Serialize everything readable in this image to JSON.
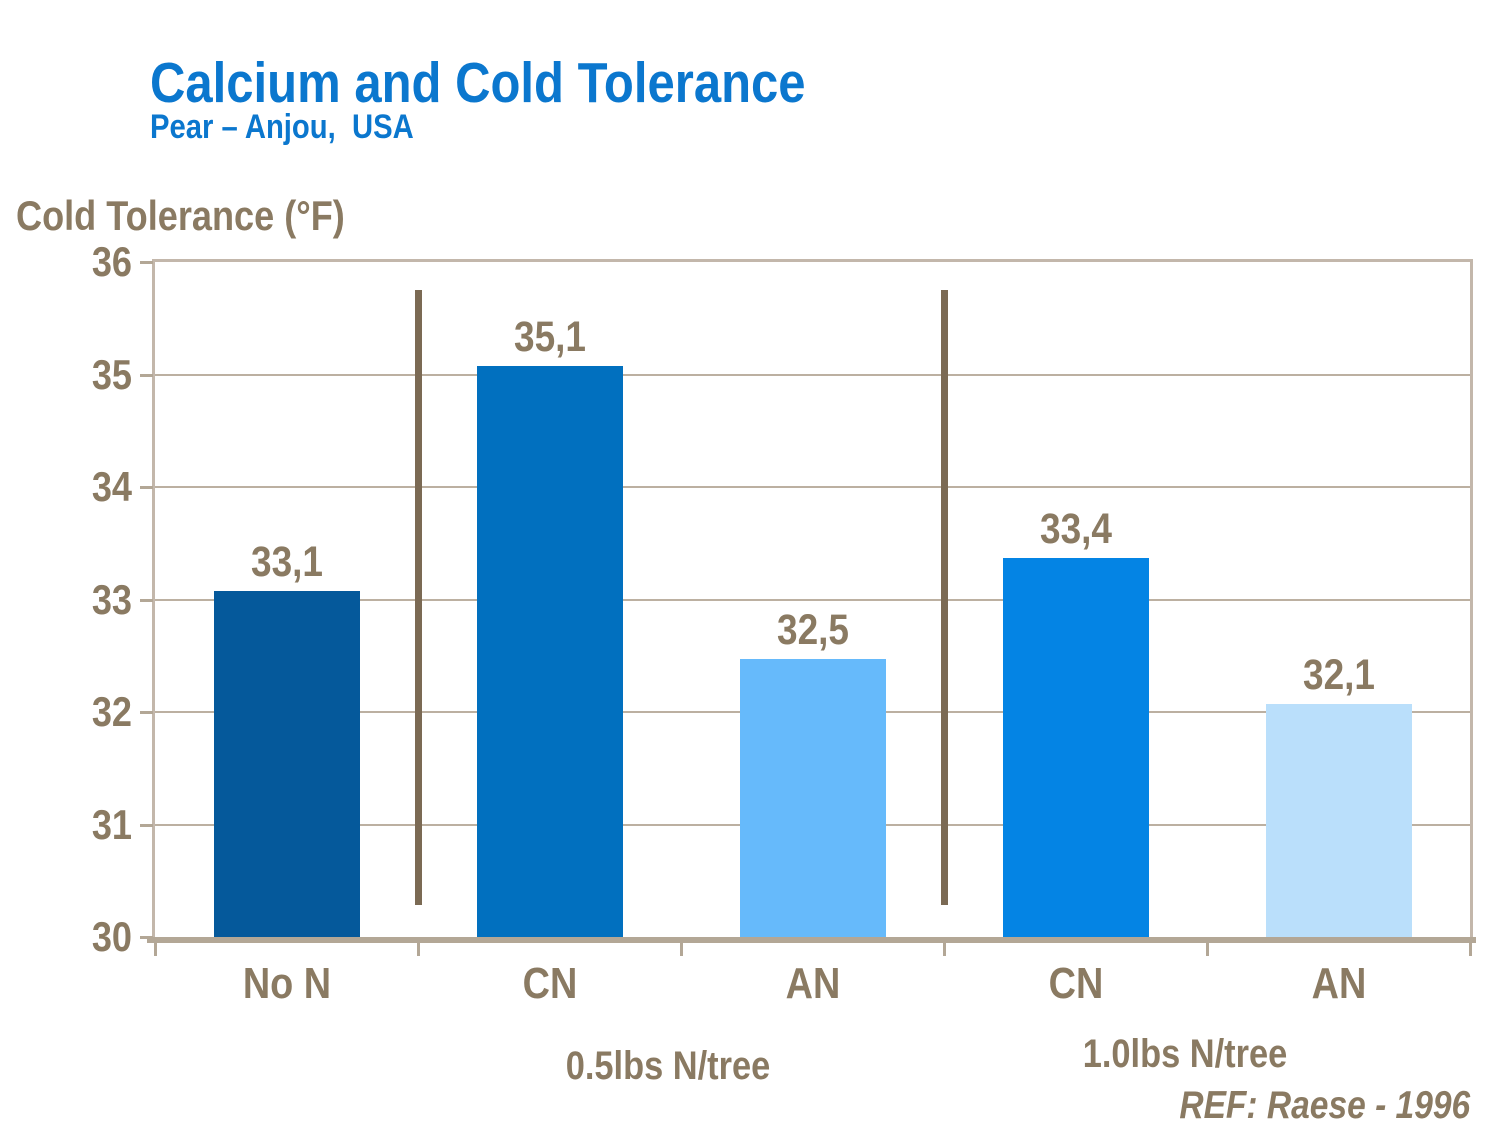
{
  "chart_data": {
    "type": "bar",
    "title": "Calcium and Cold Tolerance",
    "subtitle": "Pear – Anjou,  USA",
    "ylabel": "Cold Tolerance (°F)",
    "ylim": [
      30,
      36
    ],
    "ytick_step": 1,
    "grid": true,
    "legend_position": "none",
    "categories": [
      "No N",
      "CN",
      "AN",
      "CN",
      "AN"
    ],
    "values": [
      33.1,
      35.1,
      32.5,
      33.4,
      32.1
    ],
    "value_labels": [
      "33,1",
      "35,1",
      "32,5",
      "33,4",
      "32,1"
    ],
    "bar_colors": [
      "#05599B",
      "#0170BF",
      "#66BAFB",
      "#0484E4",
      "#BADFFB"
    ],
    "groups": [
      {
        "label": "0.5lbs N/tree",
        "category_indexes": [
          1,
          2
        ]
      },
      {
        "label": "1.0lbs N/tree",
        "category_indexes": [
          3,
          4
        ]
      }
    ],
    "divider_boundaries": [
      1,
      3
    ],
    "reference": "REF: Raese - 1996"
  },
  "colors": {
    "background": "#FFFFFF",
    "title_blue": "#0B77CE",
    "text_brown": "#8A7A62",
    "gridline_tan": "#BCB0A1",
    "axis_tan": "#B3A796",
    "plot_border_tan": "#C3B7AB",
    "divider_brown": "#7B6A54"
  }
}
